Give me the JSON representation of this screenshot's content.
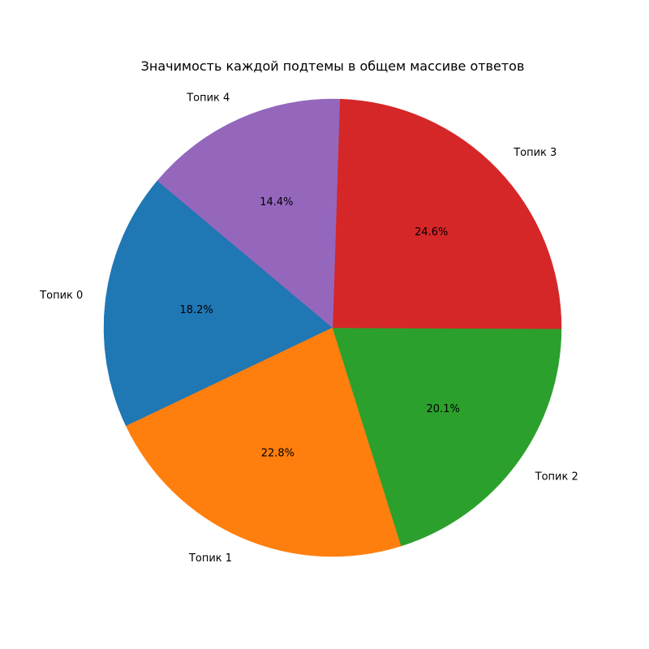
{
  "chart_data": {
    "type": "pie",
    "title": "Значимость каждой подтемы в общем массиве ответов",
    "categories": [
      "Топик 0",
      "Топик 1",
      "Топик 2",
      "Топик 3",
      "Топик 4"
    ],
    "values": [
      18.2,
      22.8,
      20.1,
      24.6,
      14.4
    ],
    "value_labels": [
      "18.2%",
      "22.8%",
      "20.1%",
      "24.6%",
      "14.4%"
    ],
    "colors": [
      "#1f77b4",
      "#ff7f0e",
      "#2ca02c",
      "#d62728",
      "#9467bd"
    ],
    "start_angle_deg": 140,
    "direction": "counterclockwise"
  }
}
